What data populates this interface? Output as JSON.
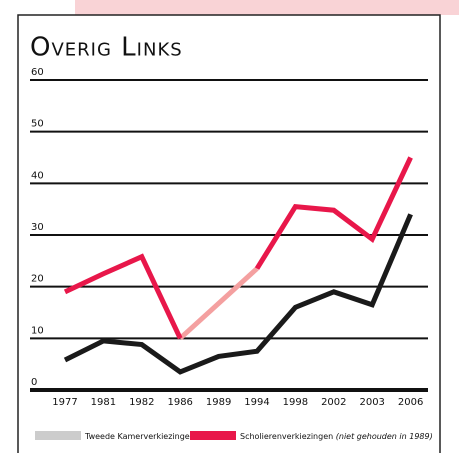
{
  "chart_data": {
    "type": "line",
    "title": "Overig Links",
    "categories": [
      "1977",
      "1981",
      "1982",
      "1986",
      "1989",
      "1994",
      "1998",
      "2002",
      "2003",
      "2006"
    ],
    "series": [
      {
        "name": "Tweede Kamerverkiezingen",
        "color": "#1a1a1a",
        "legend_color": "#cccccc",
        "values": [
          5.8,
          9.5,
          8.8,
          3.5,
          6.5,
          7.5,
          16,
          19,
          16.5,
          34
        ]
      },
      {
        "name": "Scholierenverkiezingen",
        "legend_note": "(niet gehouden in 1989)",
        "color": "#e8174a",
        "gap_color": "#f4a0a0",
        "values": [
          19,
          22.5,
          25.8,
          10,
          null,
          23.5,
          35.5,
          34.8,
          29.2,
          45
        ]
      }
    ],
    "ylim": [
      0,
      60
    ],
    "yticks": [
      0,
      10,
      20,
      30,
      40,
      50,
      60
    ],
    "grid": true
  }
}
